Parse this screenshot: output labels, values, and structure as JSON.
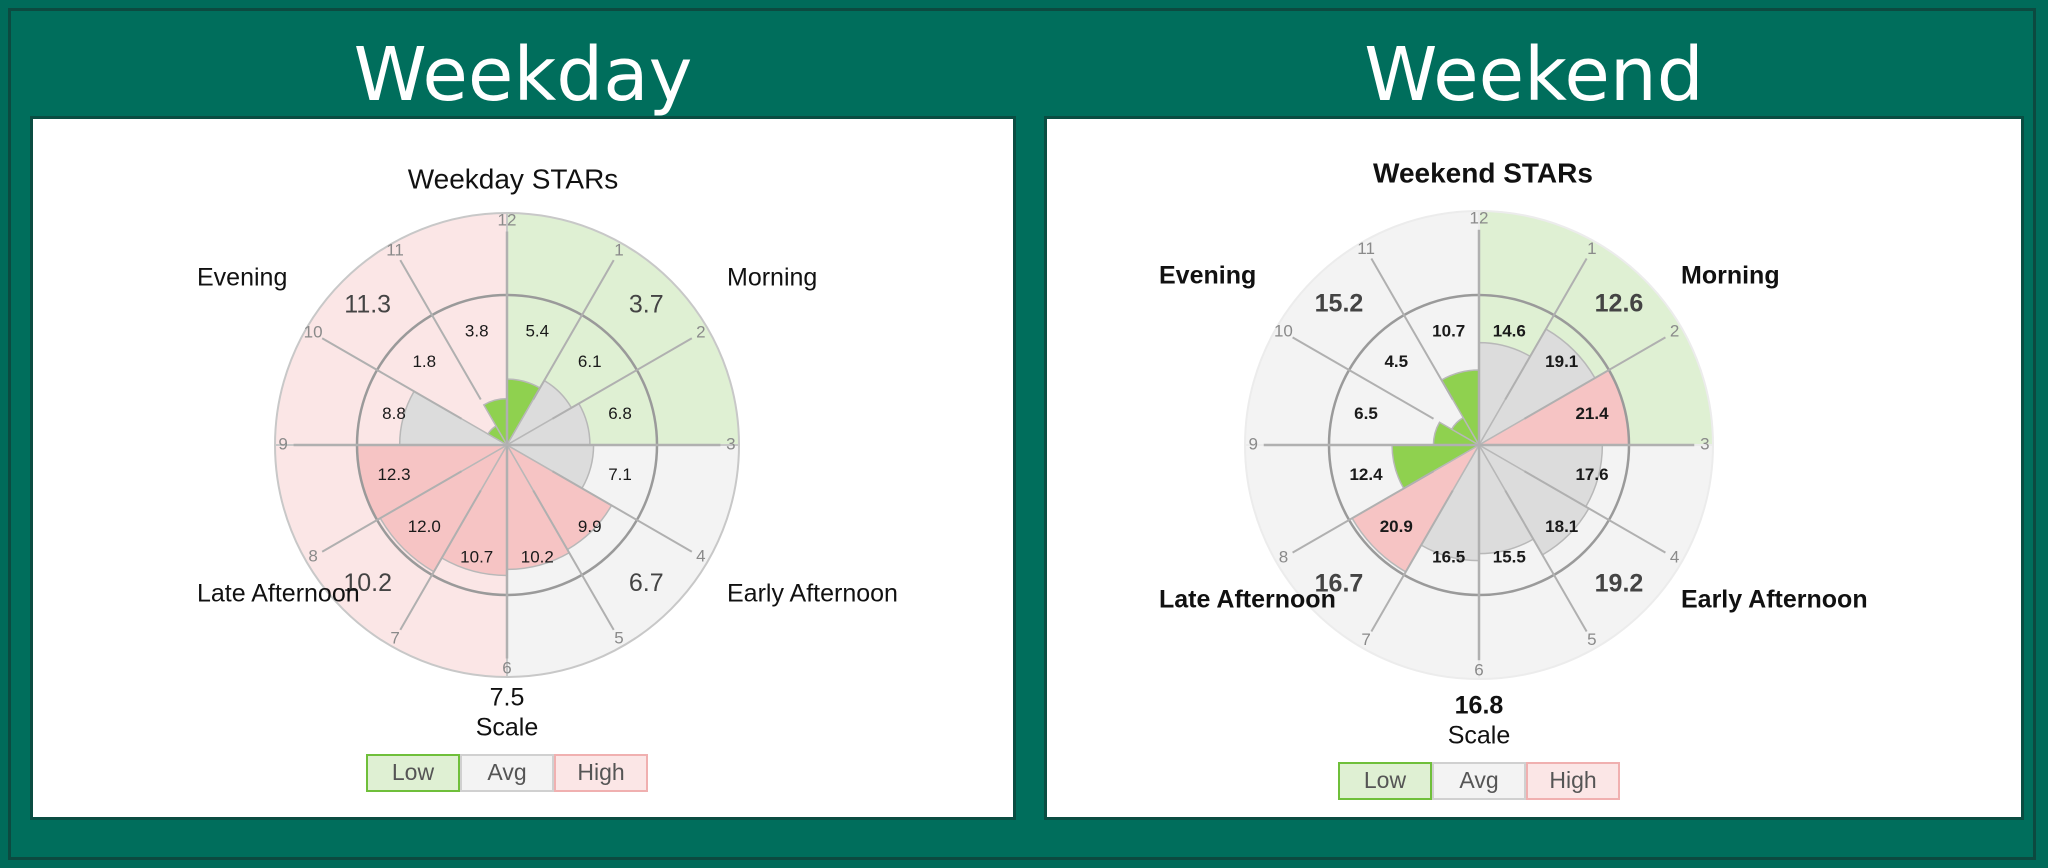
{
  "header": {
    "weekday_title": "Weekday",
    "weekend_title": "Weekend"
  },
  "colors": {
    "background": "#006e5c",
    "low": "#8fd14f",
    "avg": "#dcdcdc",
    "high": "#f6c4c4",
    "low_light": "#dff0d3",
    "avg_light": "#f3f3f3",
    "high_light": "#fbe6e6"
  },
  "chart_data": [
    {
      "type": "polar-bar",
      "title": "Weekday STARs",
      "hours": [
        "12",
        "1",
        "2",
        "3",
        "4",
        "5",
        "6",
        "7",
        "8",
        "9",
        "10",
        "11"
      ],
      "hourly": [
        {
          "value": 5.4,
          "level": "low"
        },
        {
          "value": 6.1,
          "level": "avg"
        },
        {
          "value": 6.8,
          "level": "avg"
        },
        {
          "value": 7.1,
          "level": "avg"
        },
        {
          "value": 9.9,
          "level": "high"
        },
        {
          "value": 10.2,
          "level": "high"
        },
        {
          "value": 10.7,
          "level": "high"
        },
        {
          "value": 12.0,
          "level": "high"
        },
        {
          "value": 12.3,
          "level": "high"
        },
        {
          "value": 8.8,
          "level": "avg"
        },
        {
          "value": 1.8,
          "level": "low"
        },
        {
          "value": 3.8,
          "level": "low"
        }
      ],
      "periods": [
        {
          "name": "Morning",
          "value": "3.7",
          "level": "low"
        },
        {
          "name": "Early Afternoon",
          "value": "6.7",
          "level": "avg"
        },
        {
          "name": "Late Afternoon",
          "value": "10.2",
          "level": "high"
        },
        {
          "name": "Evening",
          "value": "11.3",
          "level": "high"
        }
      ],
      "overall": "7.5",
      "scale_label": "Scale",
      "legend": [
        "Low",
        "Avg",
        "High"
      ]
    },
    {
      "type": "polar-bar",
      "title": "Weekend STARs",
      "hours": [
        "12",
        "1",
        "2",
        "3",
        "4",
        "5",
        "6",
        "7",
        "8",
        "9",
        "10",
        "11"
      ],
      "hourly": [
        {
          "value": 14.6,
          "level": "avg"
        },
        {
          "value": 19.1,
          "level": "avg"
        },
        {
          "value": 21.4,
          "level": "high"
        },
        {
          "value": 17.6,
          "level": "avg"
        },
        {
          "value": 18.1,
          "level": "avg"
        },
        {
          "value": 15.5,
          "level": "avg"
        },
        {
          "value": 16.5,
          "level": "avg"
        },
        {
          "value": 20.9,
          "level": "high"
        },
        {
          "value": 12.4,
          "level": "low"
        },
        {
          "value": 6.5,
          "level": "low"
        },
        {
          "value": 4.5,
          "level": "low"
        },
        {
          "value": 10.7,
          "level": "low"
        }
      ],
      "periods": [
        {
          "name": "Morning",
          "value": "12.6",
          "level": "low"
        },
        {
          "name": "Early Afternoon",
          "value": "19.2",
          "level": "avg"
        },
        {
          "name": "Late Afternoon",
          "value": "16.7",
          "level": "avg"
        },
        {
          "name": "Evening",
          "value": "15.2",
          "level": "avg"
        }
      ],
      "overall": "16.8",
      "scale_label": "Scale",
      "legend": [
        "Low",
        "Avg",
        "High"
      ]
    }
  ]
}
